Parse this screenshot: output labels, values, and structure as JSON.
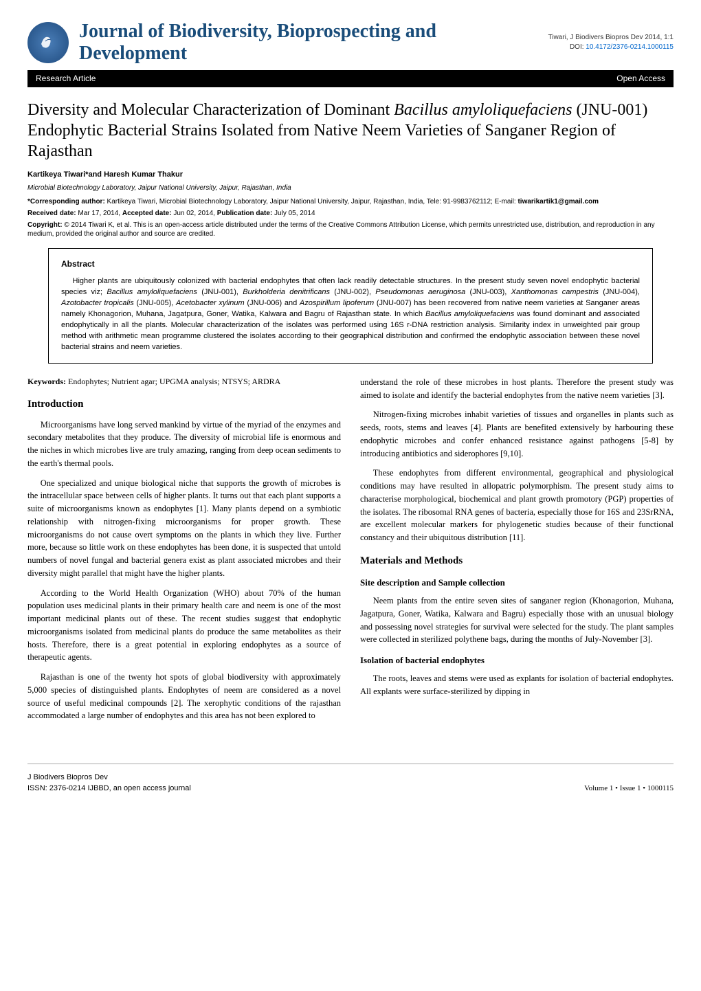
{
  "header": {
    "journal_title": "Journal of Biodiversity, Bioprospecting and Development",
    "citation": "Tiwari, J Biodivers Biopros Dev 2014, 1:1",
    "doi_label": "DOI: ",
    "doi": "10.4172/2376-0214.1000115",
    "bar_left": "Research Article",
    "bar_right": "Open Access"
  },
  "article": {
    "title_html": "Diversity and Molecular Characterization of Dominant <em>Bacillus amyloliquefaciens</em> (JNU-001) Endophytic Bacterial Strains Isolated from Native Neem Varieties of Sanganer Region of Rajasthan",
    "authors": "Kartikeya Tiwari*and Haresh Kumar Thakur",
    "affiliation": "Microbial Biotechnology Laboratory, Jaipur National University, Jaipur, Rajasthan, India",
    "corresponding": "*Corresponding author: Kartikeya Tiwari, Microbial Biotechnology Laboratory, Jaipur National University, Jaipur, Rajasthan, India, Tele: 91-9983762112; E-mail: tiwarikartik1@gmail.com",
    "dates": "Received date: Mar 17, 2014, Accepted date: Jun 02, 2014, Publication date: July 05, 2014",
    "copyright": "Copyright: © 2014 Tiwari K, et al. This is an open-access article distributed under the terms of the Creative Commons Attribution License, which permits unrestricted use, distribution, and reproduction in any medium, provided the original author and source are credited."
  },
  "abstract": {
    "heading": "Abstract",
    "text_html": "Higher plants are ubiquitously colonized with bacterial endophytes that often lack readily detectable structures. In the present study seven novel endophytic bacterial species viz; <em>Bacillus amyloliquefaciens</em> (JNU-001), <em>Burkholderia denitrificans</em> (JNU-002), <em>Pseudomonas aeruginosa</em> (JNU-003), <em>Xanthomonas campestris</em> (JNU-004), <em>Azotobacter tropicalis</em> (JNU-005), <em>Acetobacter xylinum</em> (JNU-006) and <em>Azospirillum lipoferum</em> (JNU-007) has been recovered from native neem varieties at Sanganer areas namely Khonagorion, Muhana, Jagatpura, Goner, Watika, Kalwara and Bagru of Rajasthan state. In which <em>Bacillus amyloliquefaciens</em> was found dominant and associated endophytically in all the plants. Molecular characterization of the isolates was performed using 16S r-DNA restriction analysis. Similarity index in unweighted pair group method with arithmetic mean programme clustered the isolates according to their geographical distribution and confirmed the endophytic association between these novel bacterial strains and neem varieties."
  },
  "keywords": {
    "label": "Keywords:",
    "text": " Endophytes; Nutrient agar; UPGMA analysis; NTSYS; ARDRA"
  },
  "sections": {
    "intro_heading": "Introduction",
    "intro_p1": "Microorganisms have long served mankind by virtue of the myriad of the enzymes and secondary metabolites that they produce. The diversity of microbial life is enormous and the niches in which microbes live are truly amazing, ranging from deep ocean sediments to the earth's thermal pools.",
    "intro_p2": "One specialized and unique biological niche that supports the growth of microbes is the intracellular space between cells of higher plants. It turns out that each plant supports a suite of microorganisms known as endophytes [1]. Many plants depend on a symbiotic relationship with nitrogen-fixing microorganisms for proper growth. These microorganisms do not cause overt symptoms on the plants in which they live. Further more, because so little work on these endophytes has been done, it is suspected that untold numbers of novel fungal and bacterial genera exist as plant associated microbes and their diversity might parallel that might have the higher plants.",
    "intro_p3": "According to the World Health Organization (WHO) about 70% of the human population uses medicinal plants in their primary health care and neem is one of the most important medicinal plants out of these. The recent studies suggest that endophytic microorganisms isolated from medicinal plants do produce the same metabolites as their hosts. Therefore, there is a great potential in exploring endophytes as a source of therapeutic agents.",
    "intro_p4": "Rajasthan is one of the twenty hot spots of global biodiversity with approximately 5,000 species of distinguished plants. Endophytes of neem are considered as a novel source of useful medicinal compounds [2]. The xerophytic conditions of the rajasthan accommodated a large number of endophytes and this area has not been explored to",
    "right_p1": "understand the role of these microbes in host plants. Therefore the present study was aimed to isolate and identify the bacterial endophytes from the native neem varieties [3].",
    "right_p2": "Nitrogen-fixing microbes inhabit varieties of tissues and organelles in plants such as seeds, roots, stems and leaves [4]. Plants are benefited extensively by harbouring these endophytic microbes and confer enhanced resistance against pathogens [5-8] by introducing antibiotics and siderophores [9,10].",
    "right_p3": "These endophytes from different environmental, geographical and physiological conditions may have resulted in allopatric polymorphism. The present study aims to characterise morphological, biochemical and plant growth promotory (PGP) properties of the isolates. The ribosomal RNA genes of bacteria, especially those for 16S and 23SrRNA, are excellent molecular markers for phylogenetic studies because of their functional constancy and their ubiquitous distribution [11].",
    "mm_heading": "Materials and Methods",
    "mm_sub1": "Site description and Sample collection",
    "mm_p1": "Neem plants from the entire seven sites of sanganer region (Khonagorion, Muhana, Jagatpura, Goner, Watika, Kalwara and Bagru) especially those with an unusual biology and possessing novel strategies for survival were selected for the study. The plant samples were collected in sterilized polythene bags, during the months of July-November [3].",
    "mm_sub2": "Isolation of bacterial endophytes",
    "mm_p2": "The roots, leaves and stems were used as explants for isolation of bacterial endophytes. All explants were surface-sterilized by dipping in"
  },
  "footer": {
    "left_line1": "J Biodivers Biopros Dev",
    "left_line2": "ISSN: 2376-0214 IJBBD, an open access journal",
    "right": "Volume 1 • Issue 1 • 1000115"
  },
  "colors": {
    "journal_title": "#1a4d7a",
    "doi_link": "#0066cc",
    "bar_bg": "#000000",
    "bar_fg": "#ffffff"
  }
}
